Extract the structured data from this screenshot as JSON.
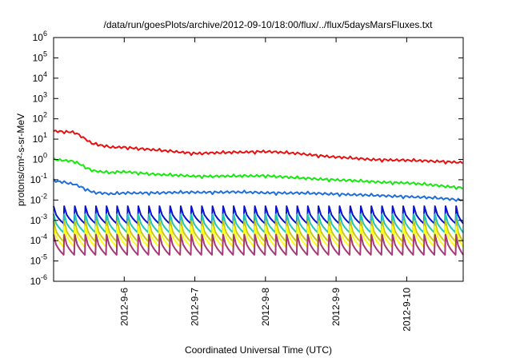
{
  "chart_data": {
    "type": "line",
    "title": "/data/run/goesPlots/archive/2012-09-10/18:00/flux/../flux/5daysMarsFluxes.txt",
    "xlabel": "Coordinated Universal Time (UTC)",
    "ylabel": "protons/cm²-s-sr-MeV",
    "y_scale": "log",
    "ylim": [
      1e-06,
      1000000.0
    ],
    "xlim": [
      0,
      5.8
    ],
    "y_ticks": [
      {
        "base": "10",
        "exp": "-6"
      },
      {
        "base": "10",
        "exp": "-5"
      },
      {
        "base": "10",
        "exp": "-4"
      },
      {
        "base": "10",
        "exp": "-3"
      },
      {
        "base": "10",
        "exp": "-2"
      },
      {
        "base": "10",
        "exp": "-1"
      },
      {
        "base": "10",
        "exp": "0"
      },
      {
        "base": "10",
        "exp": "1"
      },
      {
        "base": "10",
        "exp": "2"
      },
      {
        "base": "10",
        "exp": "3"
      },
      {
        "base": "10",
        "exp": "4"
      },
      {
        "base": "10",
        "exp": "5"
      },
      {
        "base": "10",
        "exp": "6"
      }
    ],
    "x_ticks": [
      "2012-9-6",
      "2012-9-7",
      "2012-9-8",
      "2012-9-9",
      "2012-9-10"
    ],
    "x_tick_positions": [
      1,
      2,
      3,
      4,
      5
    ],
    "grid": false,
    "series": [
      {
        "color": "#e8100f",
        "kind": "smooth",
        "anchors": [
          [
            0,
            25
          ],
          [
            0.3,
            22
          ],
          [
            0.55,
            6
          ],
          [
            0.8,
            4
          ],
          [
            1.0,
            4
          ],
          [
            1.5,
            2.8
          ],
          [
            2.0,
            2.0
          ],
          [
            2.5,
            2.2
          ],
          [
            3.0,
            2.5
          ],
          [
            3.5,
            1.9
          ],
          [
            4.0,
            1.3
          ],
          [
            4.5,
            1.0
          ],
          [
            5.0,
            0.9
          ],
          [
            5.5,
            0.8
          ],
          [
            5.8,
            0.7
          ]
        ]
      },
      {
        "color": "#16e90f",
        "kind": "smooth",
        "anchors": [
          [
            0,
            1.0
          ],
          [
            0.3,
            0.8
          ],
          [
            0.55,
            0.28
          ],
          [
            0.8,
            0.22
          ],
          [
            1.0,
            0.25
          ],
          [
            1.5,
            0.18
          ],
          [
            2.0,
            0.15
          ],
          [
            2.5,
            0.15
          ],
          [
            3.0,
            0.16
          ],
          [
            3.5,
            0.12
          ],
          [
            4.0,
            0.1
          ],
          [
            4.5,
            0.08
          ],
          [
            5.0,
            0.07
          ],
          [
            5.5,
            0.05
          ],
          [
            5.8,
            0.04
          ]
        ]
      },
      {
        "color": "#1e6fdc",
        "kind": "smooth",
        "anchors": [
          [
            0,
            0.09
          ],
          [
            0.3,
            0.06
          ],
          [
            0.55,
            0.025
          ],
          [
            0.8,
            0.02
          ],
          [
            1.0,
            0.022
          ],
          [
            1.5,
            0.023
          ],
          [
            2.0,
            0.024
          ],
          [
            2.5,
            0.025
          ],
          [
            3.0,
            0.023
          ],
          [
            3.5,
            0.022
          ],
          [
            4.0,
            0.02
          ],
          [
            4.5,
            0.017
          ],
          [
            5.0,
            0.015
          ],
          [
            5.5,
            0.012
          ],
          [
            5.8,
            0.01
          ]
        ]
      },
      {
        "color": "#0a12cf",
        "kind": "sawtooth",
        "high": 0.005,
        "low": 0.0007
      },
      {
        "color": "#1ec7b6",
        "kind": "sawtooth",
        "high": 0.002,
        "low": 0.00025
      },
      {
        "color": "#c8c615",
        "kind": "sawtooth",
        "high": 0.0009,
        "low": 9e-05
      },
      {
        "color": "#ffff1a",
        "kind": "sawtooth",
        "high": 0.0005,
        "low": 5e-05
      },
      {
        "color": "#a53a76",
        "kind": "sawtooth",
        "high": 0.0002,
        "low": 2e-05
      }
    ],
    "sawtooth_period": 0.15
  }
}
